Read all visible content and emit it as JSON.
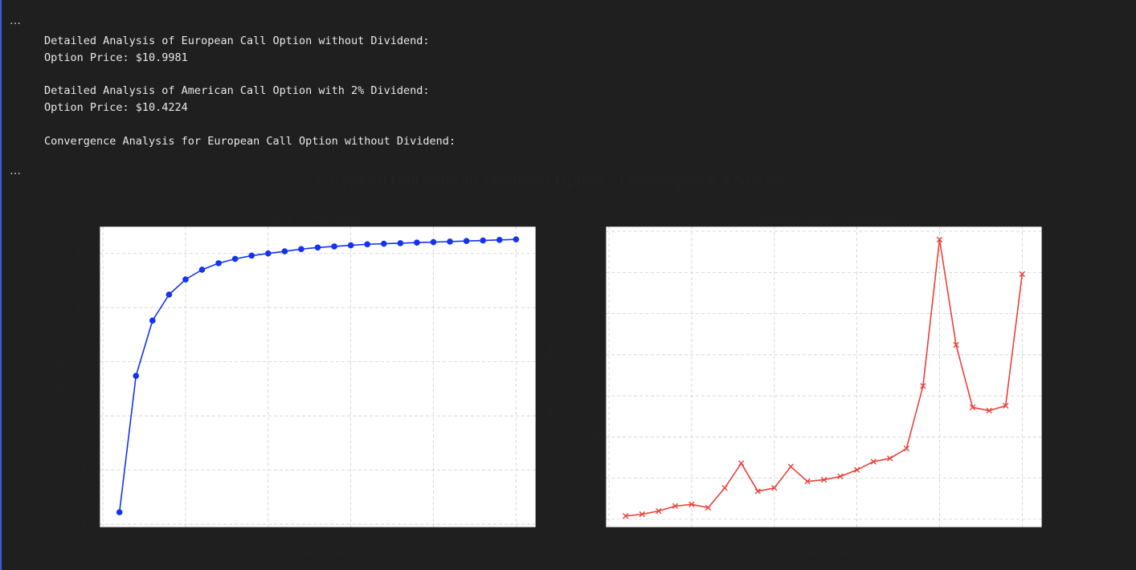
{
  "output": {
    "ellipsis": "…",
    "lines": [
      "Detailed Analysis of European Call Option without Dividend:",
      "Option Price: $10.9981",
      "Detailed Analysis of American Call Option with 2% Dividend:",
      "Option Price: $10.4224",
      "Convergence Analysis for European Call Option without Dividend:"
    ]
  },
  "figure": {
    "suptitle": "European Call without Dividend Option - Convergence Analysis"
  },
  "chart_data": [
    {
      "type": "line",
      "title": "Price Convergence",
      "xlabel": "Number of Steps",
      "ylabel": "Option Price",
      "xlim": [
        -0.2,
        26.2
      ],
      "ylim": [
        8.47,
        11.25
      ],
      "xticks": [
        0,
        5,
        10,
        15,
        20,
        25
      ],
      "yticks": [
        8.5,
        9.0,
        9.5,
        10.0,
        10.5,
        11.0
      ],
      "ytick_labels": [
        "8.5",
        "9.0",
        "9.5",
        "10.0",
        "10.5",
        "11.0"
      ],
      "grid": true,
      "color": "#1433f0",
      "marker": "circle",
      "x": [
        1,
        2,
        3,
        4,
        5,
        6,
        7,
        8,
        9,
        10,
        11,
        12,
        13,
        14,
        15,
        16,
        17,
        18,
        19,
        20,
        21,
        22,
        23,
        24,
        25
      ],
      "y": [
        8.61,
        9.87,
        10.38,
        10.62,
        10.76,
        10.85,
        10.91,
        10.95,
        10.98,
        11.0,
        11.02,
        11.04,
        11.055,
        11.065,
        11.075,
        11.085,
        11.09,
        11.095,
        11.1,
        11.105,
        11.11,
        11.115,
        11.12,
        11.125,
        11.13
      ]
    },
    {
      "type": "line",
      "title": "Computational Complexity",
      "xlabel": "Number of Steps",
      "ylabel": "Computation Time (s)",
      "xlim": [
        -0.2,
        26.2
      ],
      "ylim": [
        -5e-05,
        0.00178
      ],
      "xticks": [
        0,
        5,
        10,
        15,
        20,
        25
      ],
      "yticks": [
        0,
        0.00025,
        0.0005,
        0.00075,
        0.001,
        0.00125,
        0.0015,
        0.00175
      ],
      "ytick_labels": [
        "0.00000",
        "0.00025",
        "0.00050",
        "0.00075",
        "0.00100",
        "0.00125",
        "0.00150",
        "0.00175"
      ],
      "grid": true,
      "color": "#e8413a",
      "marker": "x",
      "x": [
        1,
        2,
        3,
        4,
        5,
        6,
        7,
        8,
        9,
        10,
        11,
        12,
        13,
        14,
        15,
        16,
        17,
        18,
        19,
        20,
        21,
        22,
        23,
        24,
        25
      ],
      "y": [
        2e-05,
        3e-05,
        5e-05,
        8e-05,
        9e-05,
        7e-05,
        0.00019,
        0.00034,
        0.00017,
        0.00019,
        0.00032,
        0.00023,
        0.00024,
        0.00026,
        0.0003,
        0.00035,
        0.00037,
        0.00043,
        0.00081,
        0.0017,
        0.00106,
        0.00068,
        0.00066,
        0.00069,
        0.00149
      ]
    }
  ]
}
